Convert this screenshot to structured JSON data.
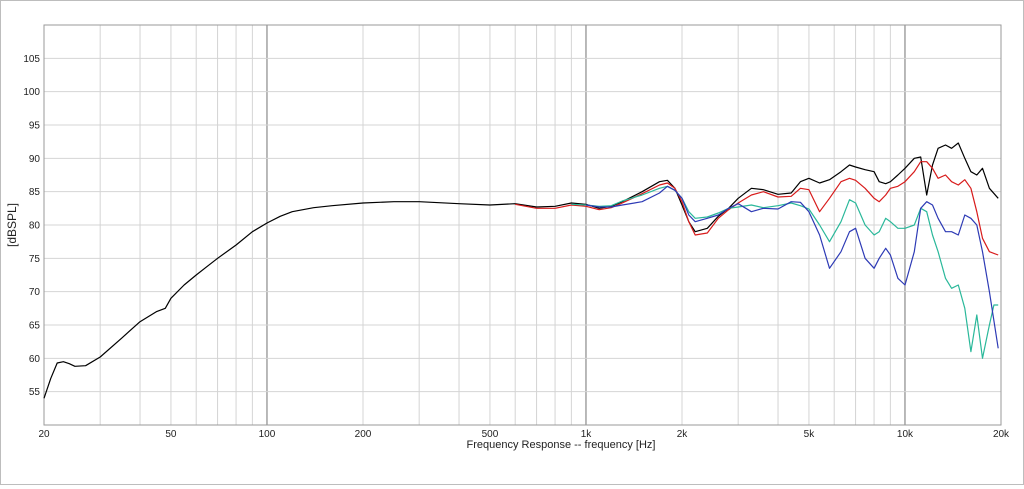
{
  "chart_data": {
    "type": "line",
    "title": "",
    "xlabel": "Frequency Response -- frequency [Hz]",
    "ylabel": "[dBSPL]",
    "x_scale": "log",
    "xlim": [
      20,
      20000
    ],
    "ylim": [
      50,
      110
    ],
    "grid": true,
    "legend": "none",
    "x_ticks": [
      {
        "value": 20,
        "label": "20"
      },
      {
        "value": 50,
        "label": "50"
      },
      {
        "value": 100,
        "label": "100"
      },
      {
        "value": 200,
        "label": "200"
      },
      {
        "value": 500,
        "label": "500"
      },
      {
        "value": 1000,
        "label": "1k"
      },
      {
        "value": 2000,
        "label": "2k"
      },
      {
        "value": 5000,
        "label": "5k"
      },
      {
        "value": 10000,
        "label": "10k"
      },
      {
        "value": 20000,
        "label": "20k"
      }
    ],
    "y_ticks": [
      {
        "value": 55,
        "label": "55"
      },
      {
        "value": 60,
        "label": "60"
      },
      {
        "value": 65,
        "label": "65"
      },
      {
        "value": 70,
        "label": "70"
      },
      {
        "value": 75,
        "label": "75"
      },
      {
        "value": 80,
        "label": "80"
      },
      {
        "value": 85,
        "label": "85"
      },
      {
        "value": 90,
        "label": "90"
      },
      {
        "value": 95,
        "label": "95"
      },
      {
        "value": 100,
        "label": "100"
      },
      {
        "value": 105,
        "label": "105"
      }
    ],
    "series": [
      {
        "color": "#000000",
        "points": [
          [
            20,
            54
          ],
          [
            21,
            57
          ],
          [
            22,
            59.3
          ],
          [
            23,
            59.5
          ],
          [
            24,
            59.2
          ],
          [
            25,
            58.8
          ],
          [
            27,
            58.9
          ],
          [
            30,
            60.2
          ],
          [
            35,
            63
          ],
          [
            40,
            65.5
          ],
          [
            45,
            67
          ],
          [
            48,
            67.5
          ],
          [
            50,
            69
          ],
          [
            55,
            71
          ],
          [
            60,
            72.5
          ],
          [
            65,
            73.8
          ],
          [
            70,
            75
          ],
          [
            80,
            77
          ],
          [
            90,
            79
          ],
          [
            100,
            80.3
          ],
          [
            110,
            81.3
          ],
          [
            120,
            82
          ],
          [
            140,
            82.6
          ],
          [
            160,
            82.9
          ],
          [
            200,
            83.3
          ],
          [
            250,
            83.5
          ],
          [
            300,
            83.5
          ],
          [
            400,
            83.2
          ],
          [
            500,
            83
          ],
          [
            600,
            83.2
          ],
          [
            700,
            82.7
          ],
          [
            800,
            82.8
          ],
          [
            900,
            83.3
          ],
          [
            1000,
            83.1
          ],
          [
            1100,
            82.5
          ],
          [
            1200,
            82.8
          ],
          [
            1300,
            83.5
          ],
          [
            1500,
            85
          ],
          [
            1700,
            86.5
          ],
          [
            1800,
            86.7
          ],
          [
            1900,
            85.5
          ],
          [
            2000,
            83
          ],
          [
            2100,
            80.5
          ],
          [
            2200,
            79
          ],
          [
            2400,
            79.5
          ],
          [
            2600,
            81.3
          ],
          [
            2800,
            82.5
          ],
          [
            3000,
            84
          ],
          [
            3300,
            85.5
          ],
          [
            3600,
            85.3
          ],
          [
            4000,
            84.6
          ],
          [
            4400,
            84.8
          ],
          [
            4700,
            86.5
          ],
          [
            5000,
            87
          ],
          [
            5400,
            86.3
          ],
          [
            5800,
            86.8
          ],
          [
            6300,
            88
          ],
          [
            6700,
            89
          ],
          [
            7000,
            88.7
          ],
          [
            7500,
            88.3
          ],
          [
            8000,
            88
          ],
          [
            8300,
            86.5
          ],
          [
            8700,
            86.2
          ],
          [
            9000,
            86.5
          ],
          [
            9500,
            87.5
          ],
          [
            10000,
            88.5
          ],
          [
            10700,
            90
          ],
          [
            11200,
            90.2
          ],
          [
            11700,
            84.5
          ],
          [
            12200,
            89
          ],
          [
            12700,
            91.5
          ],
          [
            13400,
            92
          ],
          [
            14000,
            91.5
          ],
          [
            14700,
            92.3
          ],
          [
            15400,
            90
          ],
          [
            16100,
            88
          ],
          [
            16800,
            87.5
          ],
          [
            17500,
            88.5
          ],
          [
            18400,
            85.5
          ],
          [
            19600,
            84
          ]
        ]
      },
      {
        "color": "#d81b1b",
        "points": [
          [
            600,
            83.1
          ],
          [
            700,
            82.5
          ],
          [
            800,
            82.5
          ],
          [
            900,
            83
          ],
          [
            1000,
            82.8
          ],
          [
            1100,
            82.3
          ],
          [
            1200,
            82.6
          ],
          [
            1300,
            83.3
          ],
          [
            1500,
            84.7
          ],
          [
            1700,
            86
          ],
          [
            1800,
            86.3
          ],
          [
            1900,
            85.5
          ],
          [
            2000,
            83.5
          ],
          [
            2100,
            80.5
          ],
          [
            2200,
            78.5
          ],
          [
            2400,
            78.8
          ],
          [
            2600,
            81
          ],
          [
            2800,
            82.3
          ],
          [
            3000,
            83.3
          ],
          [
            3300,
            84.5
          ],
          [
            3600,
            85
          ],
          [
            4000,
            84.2
          ],
          [
            4400,
            84.3
          ],
          [
            4700,
            85.5
          ],
          [
            5000,
            85.3
          ],
          [
            5400,
            82
          ],
          [
            5800,
            84
          ],
          [
            6300,
            86.5
          ],
          [
            6700,
            87
          ],
          [
            7000,
            86.7
          ],
          [
            7500,
            85.5
          ],
          [
            8000,
            84
          ],
          [
            8300,
            83.5
          ],
          [
            8700,
            84.5
          ],
          [
            9000,
            85.5
          ],
          [
            9500,
            85.8
          ],
          [
            10000,
            86.5
          ],
          [
            10700,
            88
          ],
          [
            11200,
            89.5
          ],
          [
            11700,
            89.5
          ],
          [
            12200,
            88.5
          ],
          [
            12700,
            87
          ],
          [
            13400,
            87.5
          ],
          [
            14000,
            86.5
          ],
          [
            14700,
            86
          ],
          [
            15400,
            86.8
          ],
          [
            16100,
            85.5
          ],
          [
            16800,
            82
          ],
          [
            17500,
            78
          ],
          [
            18400,
            76
          ],
          [
            19600,
            75.5
          ]
        ]
      },
      {
        "color": "#2ab89a",
        "points": [
          [
            900,
            83.1
          ],
          [
            1000,
            83
          ],
          [
            1100,
            82.8
          ],
          [
            1200,
            82.9
          ],
          [
            1300,
            83.6
          ],
          [
            1500,
            84.5
          ],
          [
            1700,
            85.5
          ],
          [
            1800,
            85.8
          ],
          [
            1900,
            85.2
          ],
          [
            2000,
            84
          ],
          [
            2100,
            82
          ],
          [
            2200,
            81
          ],
          [
            2400,
            81.2
          ],
          [
            2600,
            81.8
          ],
          [
            2800,
            82.5
          ],
          [
            3000,
            82.7
          ],
          [
            3300,
            83
          ],
          [
            3600,
            82.6
          ],
          [
            4000,
            82.9
          ],
          [
            4400,
            83.3
          ],
          [
            4700,
            82.9
          ],
          [
            5000,
            82.4
          ],
          [
            5400,
            80
          ],
          [
            5800,
            77.5
          ],
          [
            6300,
            80.5
          ],
          [
            6700,
            83.8
          ],
          [
            7000,
            83.3
          ],
          [
            7500,
            80
          ],
          [
            8000,
            78.5
          ],
          [
            8300,
            79
          ],
          [
            8700,
            81
          ],
          [
            9000,
            80.5
          ],
          [
            9500,
            79.5
          ],
          [
            10000,
            79.5
          ],
          [
            10700,
            80
          ],
          [
            11200,
            82.5
          ],
          [
            11700,
            82
          ],
          [
            12200,
            78.5
          ],
          [
            12700,
            76
          ],
          [
            13400,
            72
          ],
          [
            14000,
            70.5
          ],
          [
            14700,
            71
          ],
          [
            15400,
            67.5
          ],
          [
            16100,
            61
          ],
          [
            16800,
            66.5
          ],
          [
            17500,
            60
          ],
          [
            18400,
            65
          ],
          [
            19000,
            68
          ],
          [
            19600,
            68
          ]
        ]
      },
      {
        "color": "#2d3ab5",
        "points": [
          [
            1000,
            83
          ],
          [
            1100,
            82.7
          ],
          [
            1200,
            82.7
          ],
          [
            1300,
            83
          ],
          [
            1500,
            83.5
          ],
          [
            1700,
            84.8
          ],
          [
            1800,
            85.8
          ],
          [
            1900,
            85.2
          ],
          [
            2000,
            84
          ],
          [
            2100,
            81.5
          ],
          [
            2200,
            80.5
          ],
          [
            2400,
            81
          ],
          [
            2600,
            81.5
          ],
          [
            2800,
            82.5
          ],
          [
            3000,
            83.2
          ],
          [
            3300,
            82
          ],
          [
            3600,
            82.5
          ],
          [
            4000,
            82.4
          ],
          [
            4400,
            83.5
          ],
          [
            4700,
            83.4
          ],
          [
            5000,
            82
          ],
          [
            5400,
            78.5
          ],
          [
            5800,
            73.5
          ],
          [
            6300,
            76
          ],
          [
            6700,
            79
          ],
          [
            7000,
            79.5
          ],
          [
            7500,
            75
          ],
          [
            8000,
            73.5
          ],
          [
            8300,
            75
          ],
          [
            8700,
            76.5
          ],
          [
            9000,
            75.5
          ],
          [
            9500,
            72
          ],
          [
            10000,
            71
          ],
          [
            10700,
            76
          ],
          [
            11200,
            82.5
          ],
          [
            11700,
            83.5
          ],
          [
            12200,
            83
          ],
          [
            12700,
            81
          ],
          [
            13400,
            79
          ],
          [
            14000,
            79
          ],
          [
            14700,
            78.5
          ],
          [
            15400,
            81.5
          ],
          [
            16100,
            81
          ],
          [
            16800,
            80
          ],
          [
            17500,
            76
          ],
          [
            18400,
            70
          ],
          [
            19600,
            61.5
          ]
        ]
      }
    ]
  }
}
